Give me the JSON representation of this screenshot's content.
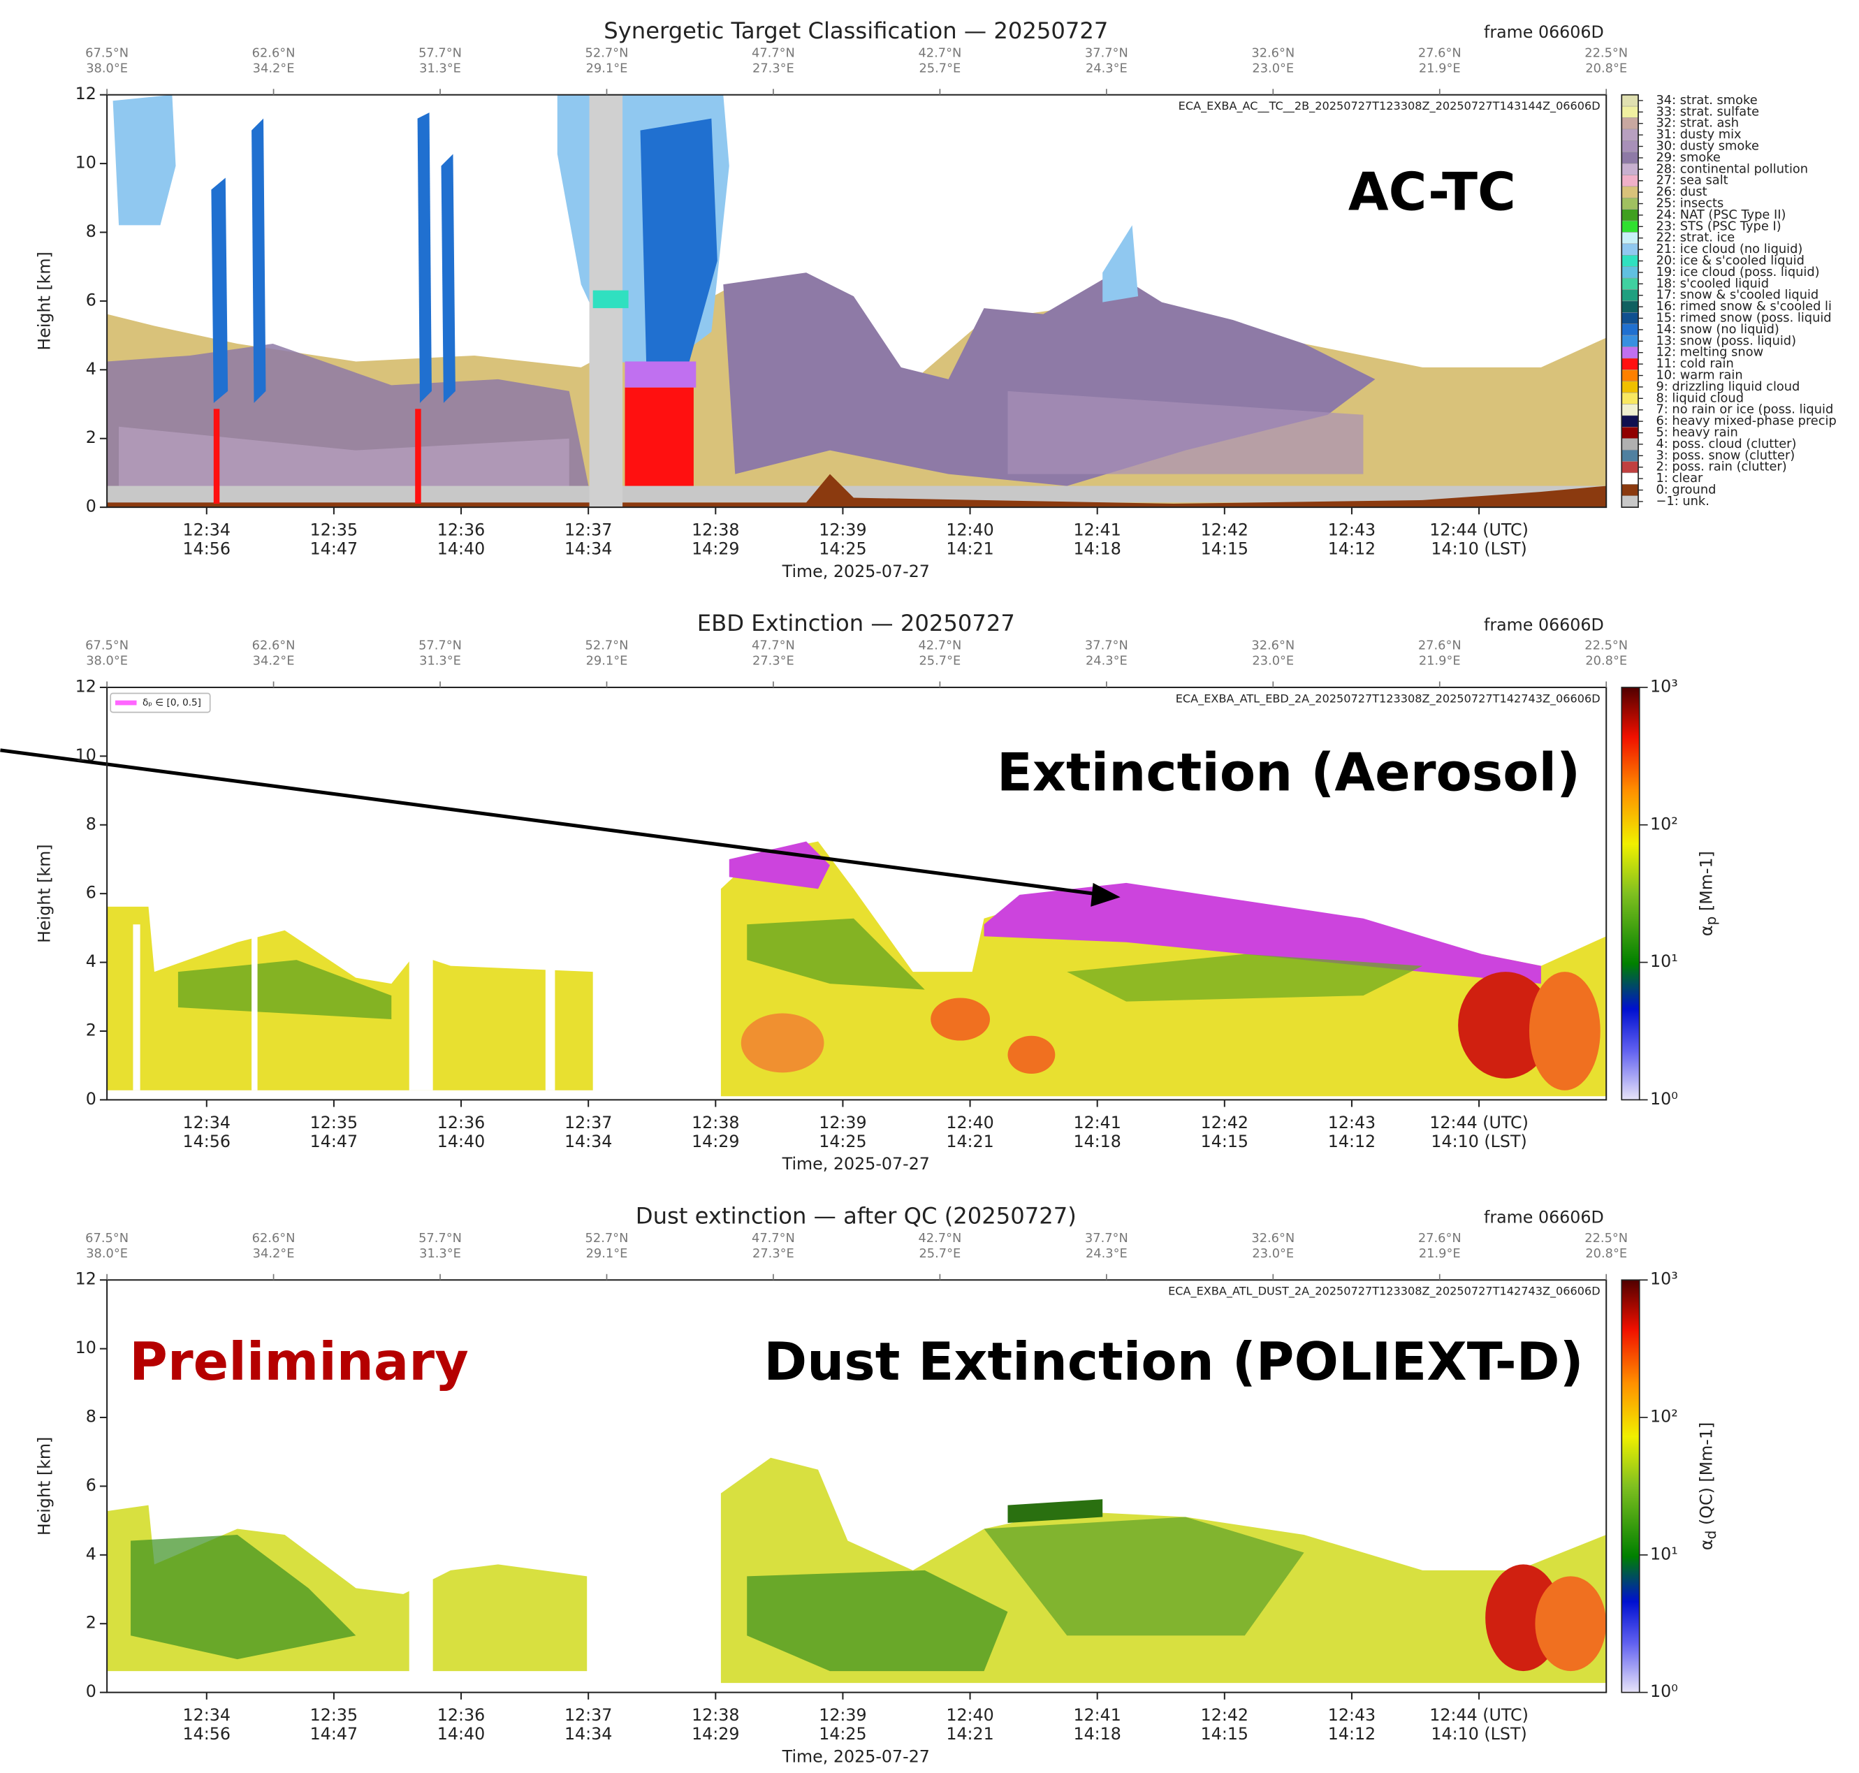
{
  "chart_data": [
    {
      "type": "classification",
      "title": "Synergetic Target Classification — 20250727",
      "frame": "frame 06606D",
      "file": "ECA_EXBA_AC__TC__2B_20250727T123308Z_20250727T143144Z_06606D",
      "annotations": [
        {
          "text": "AC-TC",
          "color": "#000000"
        }
      ],
      "ylabel": "Height [km]",
      "xlabel": "Time, 2025-07-27",
      "ylim": [
        0,
        12
      ],
      "yticks": [
        0,
        2,
        4,
        6,
        8,
        10,
        12
      ],
      "xlim": [
        "12:33:13",
        "12:45:00"
      ],
      "geo_ticks": [
        {
          "lat": "67.5°N",
          "lon": "38.0°E"
        },
        {
          "lat": "62.6°N",
          "lon": "34.2°E"
        },
        {
          "lat": "57.7°N",
          "lon": "31.3°E"
        },
        {
          "lat": "52.7°N",
          "lon": "29.1°E"
        },
        {
          "lat": "47.7°N",
          "lon": "27.3°E"
        },
        {
          "lat": "42.7°N",
          "lon": "25.7°E"
        },
        {
          "lat": "37.7°N",
          "lon": "24.3°E"
        },
        {
          "lat": "32.6°N",
          "lon": "23.0°E"
        },
        {
          "lat": "27.6°N",
          "lon": "21.9°E"
        },
        {
          "lat": "22.5°N",
          "lon": "20.8°E"
        }
      ],
      "time_ticks": [
        {
          "utc": "12:34",
          "lst": "14:56"
        },
        {
          "utc": "12:35",
          "lst": "14:47"
        },
        {
          "utc": "12:36",
          "lst": "14:40"
        },
        {
          "utc": "12:37",
          "lst": "14:34"
        },
        {
          "utc": "12:38",
          "lst": "14:29"
        },
        {
          "utc": "12:39",
          "lst": "14:25"
        },
        {
          "utc": "12:40",
          "lst": "14:21"
        },
        {
          "utc": "12:41",
          "lst": "14:18"
        },
        {
          "utc": "12:42",
          "lst": "14:15"
        },
        {
          "utc": "12:43",
          "lst": "14:12"
        },
        {
          "utc": "12:44 (UTC)",
          "lst": "14:10 (LST)"
        }
      ],
      "classes": [
        {
          "label": "34: strat. smoke",
          "color": "#e0e0b0"
        },
        {
          "label": "33: strat. sulfate",
          "color": "#f0f0a0"
        },
        {
          "label": "32: strat. ash",
          "color": "#c8a8a0"
        },
        {
          "label": "31: dusty mix",
          "color": "#b8a0c0"
        },
        {
          "label": "30: dusty smoke",
          "color": "#a890b8"
        },
        {
          "label": "29: smoke",
          "color": "#8e7aa6"
        },
        {
          "label": "28: continental pollution",
          "color": "#c8b0d0"
        },
        {
          "label": "27: sea salt",
          "color": "#f0b0c8"
        },
        {
          "label": "26: dust",
          "color": "#d9c27a"
        },
        {
          "label": "25: insects",
          "color": "#a0c060"
        },
        {
          "label": "24: NAT (PSC Type II)",
          "color": "#40a020"
        },
        {
          "label": "23: STS (PSC Type I)",
          "color": "#30e030"
        },
        {
          "label": "22: strat. ice",
          "color": "#c8f0f8"
        },
        {
          "label": "21: ice cloud (no liquid)",
          "color": "#90c8f0"
        },
        {
          "label": "20: ice & s'cooled liquid",
          "color": "#30e0c0"
        },
        {
          "label": "19: ice cloud (poss. liquid)",
          "color": "#60c0e0"
        },
        {
          "label": "18: s'cooled liquid",
          "color": "#40d0a0"
        },
        {
          "label": "17: snow & s'cooled liquid",
          "color": "#20a080"
        },
        {
          "label": "16: rimed snow & s'cooled li",
          "color": "#106060"
        },
        {
          "label": "15: rimed snow (poss. liquid",
          "color": "#105090"
        },
        {
          "label": "14: snow (no liquid)",
          "color": "#2070d0"
        },
        {
          "label": "13: snow (poss. liquid)",
          "color": "#3890e0"
        },
        {
          "label": "12: melting snow",
          "color": "#c070f0"
        },
        {
          "label": "11: cold rain",
          "color": "#ff1010"
        },
        {
          "label": "10: warm rain",
          "color": "#ff8000"
        },
        {
          "label": "9: drizzling liquid cloud",
          "color": "#f0c000"
        },
        {
          "label": "8: liquid cloud",
          "color": "#f8e860"
        },
        {
          "label": "7: no rain or ice (poss. liquid",
          "color": "#f0f0d0"
        },
        {
          "label": "6: heavy mixed-phase precip",
          "color": "#101050"
        },
        {
          "label": "5: heavy rain",
          "color": "#900000"
        },
        {
          "label": "4: poss. cloud (clutter)",
          "color": "#b0b0b0"
        },
        {
          "label": "3: poss. snow (clutter)",
          "color": "#5080a0"
        },
        {
          "label": "2: poss. rain (clutter)",
          "color": "#c04040"
        },
        {
          "label": "1: clear",
          "color": "#ffffff"
        },
        {
          "label": "0: ground",
          "color": "#8b3a0f"
        },
        {
          "label": "−1: unk.",
          "color": "#c8c8c8"
        }
      ]
    },
    {
      "type": "extinction",
      "title": "EBD Extinction — 20250727",
      "frame": "frame 06606D",
      "file": "ECA_EXBA_ATL_EBD_2A_20250727T123308Z_20250727T142743Z_06606D",
      "annotations": [
        {
          "text": "Extinction (Aerosol)",
          "color": "#000000"
        }
      ],
      "legend": {
        "name": "δₚ ∈ [0, 0.5]",
        "color": "#ff66ff"
      },
      "ylabel": "Height [km]",
      "xlabel": "Time, 2025-07-27",
      "ylim": [
        0,
        12
      ],
      "yticks": [
        0,
        2,
        4,
        6,
        8,
        10,
        12
      ],
      "xlim": [
        "12:33:13",
        "12:45:00"
      ],
      "geo_ticks": [
        {
          "lat": "67.5°N",
          "lon": "38.0°E"
        },
        {
          "lat": "62.6°N",
          "lon": "34.2°E"
        },
        {
          "lat": "57.7°N",
          "lon": "31.3°E"
        },
        {
          "lat": "52.7°N",
          "lon": "29.1°E"
        },
        {
          "lat": "47.7°N",
          "lon": "27.3°E"
        },
        {
          "lat": "42.7°N",
          "lon": "25.7°E"
        },
        {
          "lat": "37.7°N",
          "lon": "24.3°E"
        },
        {
          "lat": "32.6°N",
          "lon": "23.0°E"
        },
        {
          "lat": "27.6°N",
          "lon": "21.9°E"
        },
        {
          "lat": "22.5°N",
          "lon": "20.8°E"
        }
      ],
      "time_ticks": [
        {
          "utc": "12:34",
          "lst": "14:56"
        },
        {
          "utc": "12:35",
          "lst": "14:47"
        },
        {
          "utc": "12:36",
          "lst": "14:40"
        },
        {
          "utc": "12:37",
          "lst": "14:34"
        },
        {
          "utc": "12:38",
          "lst": "14:29"
        },
        {
          "utc": "12:39",
          "lst": "14:25"
        },
        {
          "utc": "12:40",
          "lst": "14:21"
        },
        {
          "utc": "12:41",
          "lst": "14:18"
        },
        {
          "utc": "12:42",
          "lst": "14:15"
        },
        {
          "utc": "12:43",
          "lst": "14:12"
        },
        {
          "utc": "12:44 (UTC)",
          "lst": "14:10 (LST)"
        }
      ],
      "colorbar": {
        "symbol": "α",
        "sub": "p",
        "rest": " [Mm-1]",
        "clim": [
          1,
          1000
        ],
        "log": true,
        "ticks": [
          {
            "value": 1,
            "label": "10⁰"
          },
          {
            "value": 10,
            "label": "10¹"
          },
          {
            "value": 100,
            "label": "10²"
          },
          {
            "value": 1000,
            "label": "10³"
          }
        ]
      }
    },
    {
      "type": "extinction",
      "title": "Dust extinction — after QC  (20250727)",
      "frame": "frame 06606D",
      "file": "ECA_EXBA_ATL_DUST_2A_20250727T123308Z_20250727T142743Z_06606D",
      "annotations": [
        {
          "text": "Preliminary",
          "color": "#b50000"
        },
        {
          "text": "Dust Extinction (POLIEXT-D)",
          "color": "#000000"
        }
      ],
      "ylabel": "Height [km]",
      "xlabel": "Time, 2025-07-27",
      "ylim": [
        0,
        12
      ],
      "yticks": [
        0,
        2,
        4,
        6,
        8,
        10,
        12
      ],
      "xlim": [
        "12:33:13",
        "12:45:00"
      ],
      "geo_ticks": [
        {
          "lat": "67.5°N",
          "lon": "38.0°E"
        },
        {
          "lat": "62.6°N",
          "lon": "34.2°E"
        },
        {
          "lat": "57.7°N",
          "lon": "31.3°E"
        },
        {
          "lat": "52.7°N",
          "lon": "29.1°E"
        },
        {
          "lat": "47.7°N",
          "lon": "27.3°E"
        },
        {
          "lat": "42.7°N",
          "lon": "25.7°E"
        },
        {
          "lat": "37.7°N",
          "lon": "24.3°E"
        },
        {
          "lat": "32.6°N",
          "lon": "23.0°E"
        },
        {
          "lat": "27.6°N",
          "lon": "21.9°E"
        },
        {
          "lat": "22.5°N",
          "lon": "20.8°E"
        }
      ],
      "time_ticks": [
        {
          "utc": "12:34",
          "lst": "14:56"
        },
        {
          "utc": "12:35",
          "lst": "14:47"
        },
        {
          "utc": "12:36",
          "lst": "14:40"
        },
        {
          "utc": "12:37",
          "lst": "14:34"
        },
        {
          "utc": "12:38",
          "lst": "14:29"
        },
        {
          "utc": "12:39",
          "lst": "14:25"
        },
        {
          "utc": "12:40",
          "lst": "14:21"
        },
        {
          "utc": "12:41",
          "lst": "14:18"
        },
        {
          "utc": "12:42",
          "lst": "14:15"
        },
        {
          "utc": "12:43",
          "lst": "14:12"
        },
        {
          "utc": "12:44 (UTC)",
          "lst": "14:10 (LST)"
        }
      ],
      "colorbar": {
        "symbol": "α",
        "sub": "d",
        "rest": " (QC) [Mm-1]",
        "clim": [
          1,
          1000
        ],
        "log": true,
        "ticks": [
          {
            "value": 1,
            "label": "10⁰"
          },
          {
            "value": 10,
            "label": "10¹"
          },
          {
            "value": 100,
            "label": "10²"
          },
          {
            "value": 1000,
            "label": "10³"
          }
        ]
      }
    }
  ]
}
